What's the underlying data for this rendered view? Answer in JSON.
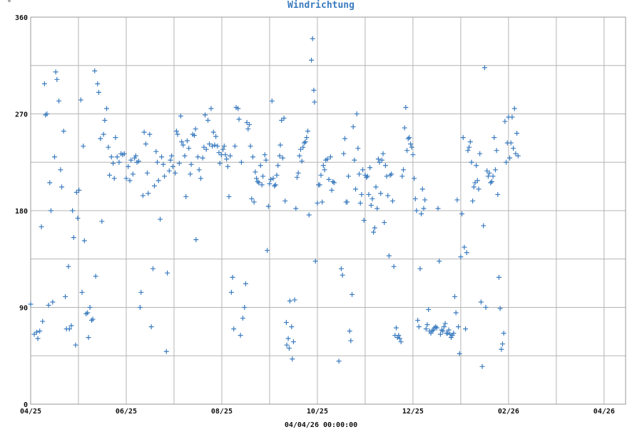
{
  "chart_data": {
    "type": "scatter",
    "title": "Windrichtung",
    "y_unit": "°",
    "footer": "04/04/26 00:00:00",
    "marker": "+",
    "grid": true,
    "xlim": [
      0,
      24.9
    ],
    "ylim": [
      0,
      360
    ],
    "x_ticks": [
      {
        "pos": 0,
        "label": "04/25"
      },
      {
        "pos": 4,
        "label": "06/25"
      },
      {
        "pos": 8,
        "label": "08/25"
      },
      {
        "pos": 12,
        "label": "10/25"
      },
      {
        "pos": 16,
        "label": "12/25"
      },
      {
        "pos": 20,
        "label": "02/26"
      },
      {
        "pos": 24,
        "label": "04/26"
      }
    ],
    "x_grid": [
      0,
      2,
      4,
      6,
      8,
      10,
      12,
      14,
      16,
      18,
      20,
      22,
      24
    ],
    "y_ticks": [
      {
        "value": 0,
        "label": "0"
      },
      {
        "value": 90,
        "label": "90"
      },
      {
        "value": 180,
        "label": "180"
      },
      {
        "value": 270,
        "label": "270"
      },
      {
        "value": 360,
        "label": "360"
      }
    ],
    "y_grid": [
      0,
      45,
      90,
      135,
      180,
      225,
      270,
      315,
      360
    ],
    "color": "#3a7bbf",
    "points": [
      [
        0.0,
        93
      ],
      [
        0.15,
        65
      ],
      [
        0.25,
        67
      ],
      [
        0.3,
        61
      ],
      [
        0.38,
        68
      ],
      [
        0.45,
        165
      ],
      [
        0.5,
        77
      ],
      [
        0.58,
        298
      ],
      [
        0.62,
        269
      ],
      [
        0.68,
        270
      ],
      [
        0.75,
        92
      ],
      [
        0.8,
        206
      ],
      [
        0.85,
        180
      ],
      [
        0.92,
        95
      ],
      [
        1.0,
        230
      ],
      [
        1.05,
        309
      ],
      [
        1.1,
        302
      ],
      [
        1.18,
        282
      ],
      [
        1.25,
        218
      ],
      [
        1.3,
        202
      ],
      [
        1.38,
        254
      ],
      [
        1.45,
        100
      ],
      [
        1.5,
        70
      ],
      [
        1.58,
        128
      ],
      [
        1.62,
        70
      ],
      [
        1.7,
        73
      ],
      [
        1.75,
        180
      ],
      [
        1.8,
        155
      ],
      [
        1.88,
        55
      ],
      [
        1.92,
        197
      ],
      [
        1.97,
        173
      ],
      [
        2.02,
        199
      ],
      [
        2.1,
        283
      ],
      [
        2.15,
        104
      ],
      [
        2.2,
        240
      ],
      [
        2.25,
        152
      ],
      [
        2.32,
        84
      ],
      [
        2.38,
        85
      ],
      [
        2.42,
        62
      ],
      [
        2.48,
        90
      ],
      [
        2.55,
        78
      ],
      [
        2.6,
        79
      ],
      [
        2.68,
        310
      ],
      [
        2.72,
        119
      ],
      [
        2.8,
        298
      ],
      [
        2.85,
        290
      ],
      [
        2.92,
        247
      ],
      [
        2.98,
        170
      ],
      [
        3.05,
        251
      ],
      [
        3.1,
        264
      ],
      [
        3.18,
        275
      ],
      [
        3.25,
        239
      ],
      [
        3.3,
        213
      ],
      [
        3.38,
        230
      ],
      [
        3.45,
        224
      ],
      [
        3.5,
        210
      ],
      [
        3.55,
        248
      ],
      [
        3.62,
        230
      ],
      [
        3.7,
        225
      ],
      [
        3.78,
        233
      ],
      [
        3.85,
        232
      ],
      [
        3.92,
        233
      ],
      [
        4.0,
        210
      ],
      [
        4.08,
        221
      ],
      [
        4.15,
        208
      ],
      [
        4.2,
        227
      ],
      [
        4.28,
        214
      ],
      [
        4.35,
        229
      ],
      [
        4.4,
        231
      ],
      [
        4.45,
        225
      ],
      [
        4.52,
        226
      ],
      [
        4.58,
        90
      ],
      [
        4.62,
        104
      ],
      [
        4.7,
        194
      ],
      [
        4.75,
        253
      ],
      [
        4.82,
        242
      ],
      [
        4.88,
        215
      ],
      [
        4.92,
        196
      ],
      [
        4.98,
        251
      ],
      [
        5.05,
        72
      ],
      [
        5.12,
        126
      ],
      [
        5.18,
        203
      ],
      [
        5.25,
        235
      ],
      [
        5.3,
        225
      ],
      [
        5.35,
        208
      ],
      [
        5.42,
        172
      ],
      [
        5.48,
        230
      ],
      [
        5.55,
        223
      ],
      [
        5.6,
        212
      ],
      [
        5.68,
        49
      ],
      [
        5.72,
        122
      ],
      [
        5.8,
        217
      ],
      [
        5.85,
        227
      ],
      [
        5.9,
        231
      ],
      [
        5.95,
        221
      ],
      [
        6.05,
        215
      ],
      [
        6.1,
        254
      ],
      [
        6.15,
        251
      ],
      [
        6.22,
        224
      ],
      [
        6.28,
        268
      ],
      [
        6.32,
        244
      ],
      [
        6.38,
        241
      ],
      [
        6.45,
        231
      ],
      [
        6.5,
        193
      ],
      [
        6.55,
        245
      ],
      [
        6.62,
        238
      ],
      [
        6.68,
        214
      ],
      [
        6.72,
        223
      ],
      [
        6.78,
        251
      ],
      [
        6.85,
        250
      ],
      [
        6.9,
        256
      ],
      [
        6.92,
        153
      ],
      [
        7.0,
        230
      ],
      [
        7.05,
        218
      ],
      [
        7.12,
        210
      ],
      [
        7.2,
        229
      ],
      [
        7.25,
        239
      ],
      [
        7.3,
        269
      ],
      [
        7.35,
        237
      ],
      [
        7.42,
        264
      ],
      [
        7.48,
        242
      ],
      [
        7.55,
        275
      ],
      [
        7.6,
        240
      ],
      [
        7.65,
        253
      ],
      [
        7.7,
        241
      ],
      [
        7.75,
        249
      ],
      [
        7.82,
        240
      ],
      [
        7.88,
        234
      ],
      [
        7.92,
        224
      ],
      [
        7.98,
        232
      ],
      [
        8.05,
        237
      ],
      [
        8.1,
        240
      ],
      [
        8.15,
        232
      ],
      [
        8.2,
        228
      ],
      [
        8.25,
        221
      ],
      [
        8.3,
        193
      ],
      [
        8.35,
        231
      ],
      [
        8.4,
        104
      ],
      [
        8.45,
        118
      ],
      [
        8.5,
        70
      ],
      [
        8.55,
        240
      ],
      [
        8.6,
        276
      ],
      [
        8.68,
        275
      ],
      [
        8.72,
        265
      ],
      [
        8.78,
        64
      ],
      [
        8.82,
        225
      ],
      [
        8.88,
        80
      ],
      [
        8.95,
        90
      ],
      [
        9.0,
        112
      ],
      [
        9.05,
        262
      ],
      [
        9.1,
        256
      ],
      [
        9.15,
        260
      ],
      [
        9.2,
        240
      ],
      [
        9.25,
        191
      ],
      [
        9.3,
        230
      ],
      [
        9.35,
        188
      ],
      [
        9.4,
        216
      ],
      [
        9.45,
        210
      ],
      [
        9.5,
        207
      ],
      [
        9.55,
        206
      ],
      [
        9.62,
        222
      ],
      [
        9.68,
        204
      ],
      [
        9.72,
        212
      ],
      [
        9.8,
        232
      ],
      [
        9.85,
        227
      ],
      [
        9.9,
        143
      ],
      [
        9.95,
        184
      ],
      [
        10.0,
        205
      ],
      [
        10.05,
        209
      ],
      [
        10.1,
        282
      ],
      [
        10.15,
        210
      ],
      [
        10.2,
        203
      ],
      [
        10.25,
        204
      ],
      [
        10.3,
        213
      ],
      [
        10.35,
        222
      ],
      [
        10.42,
        231
      ],
      [
        10.45,
        241
      ],
      [
        10.5,
        264
      ],
      [
        10.55,
        229
      ],
      [
        10.6,
        266
      ],
      [
        10.65,
        189
      ],
      [
        10.7,
        76
      ],
      [
        10.72,
        55
      ],
      [
        10.78,
        61
      ],
      [
        10.82,
        52
      ],
      [
        10.85,
        96
      ],
      [
        10.92,
        72
      ],
      [
        10.95,
        42
      ],
      [
        11.0,
        58
      ],
      [
        11.05,
        97
      ],
      [
        11.1,
        182
      ],
      [
        11.15,
        211
      ],
      [
        11.2,
        215
      ],
      [
        11.25,
        231
      ],
      [
        11.3,
        237
      ],
      [
        11.35,
        226
      ],
      [
        11.4,
        239
      ],
      [
        11.45,
        243
      ],
      [
        11.5,
        244
      ],
      [
        11.55,
        248
      ],
      [
        11.6,
        254
      ],
      [
        11.65,
        176
      ],
      [
        11.75,
        320
      ],
      [
        11.8,
        340
      ],
      [
        11.85,
        292
      ],
      [
        11.88,
        281
      ],
      [
        11.92,
        133
      ],
      [
        12.0,
        187
      ],
      [
        12.05,
        204
      ],
      [
        12.1,
        204
      ],
      [
        12.15,
        213
      ],
      [
        12.2,
        188
      ],
      [
        12.25,
        222
      ],
      [
        12.3,
        218
      ],
      [
        12.35,
        227
      ],
      [
        12.42,
        228
      ],
      [
        12.48,
        209
      ],
      [
        12.55,
        230
      ],
      [
        12.6,
        199
      ],
      [
        12.65,
        207
      ],
      [
        12.7,
        206
      ],
      [
        12.9,
        40
      ],
      [
        13.0,
        126
      ],
      [
        13.05,
        120
      ],
      [
        13.1,
        233
      ],
      [
        13.15,
        247
      ],
      [
        13.2,
        188
      ],
      [
        13.25,
        188
      ],
      [
        13.3,
        212
      ],
      [
        13.35,
        68
      ],
      [
        13.4,
        59
      ],
      [
        13.45,
        102
      ],
      [
        13.5,
        258
      ],
      [
        13.55,
        227
      ],
      [
        13.6,
        200
      ],
      [
        13.65,
        270
      ],
      [
        13.7,
        238
      ],
      [
        13.75,
        214
      ],
      [
        13.8,
        187
      ],
      [
        13.85,
        195
      ],
      [
        13.9,
        218
      ],
      [
        13.95,
        171
      ],
      [
        14.0,
        213
      ],
      [
        14.05,
        211
      ],
      [
        14.1,
        212
      ],
      [
        14.15,
        195
      ],
      [
        14.2,
        220
      ],
      [
        14.25,
        185
      ],
      [
        14.3,
        191
      ],
      [
        14.35,
        160
      ],
      [
        14.4,
        164
      ],
      [
        14.45,
        202
      ],
      [
        14.5,
        182
      ],
      [
        14.55,
        228
      ],
      [
        14.6,
        225
      ],
      [
        14.65,
        196
      ],
      [
        14.7,
        227
      ],
      [
        14.75,
        233
      ],
      [
        14.8,
        169
      ],
      [
        14.85,
        222
      ],
      [
        14.9,
        212
      ],
      [
        14.95,
        194
      ],
      [
        15.0,
        138
      ],
      [
        15.05,
        213
      ],
      [
        15.1,
        214
      ],
      [
        15.15,
        189
      ],
      [
        15.2,
        128
      ],
      [
        15.25,
        64
      ],
      [
        15.3,
        71
      ],
      [
        15.35,
        62
      ],
      [
        15.4,
        64
      ],
      [
        15.45,
        61
      ],
      [
        15.5,
        58
      ],
      [
        15.55,
        212
      ],
      [
        15.6,
        218
      ],
      [
        15.65,
        257
      ],
      [
        15.7,
        276
      ],
      [
        15.75,
        236
      ],
      [
        15.8,
        247
      ],
      [
        15.85,
        248
      ],
      [
        15.9,
        242
      ],
      [
        15.95,
        239
      ],
      [
        16.0,
        232
      ],
      [
        16.05,
        210
      ],
      [
        16.1,
        191
      ],
      [
        16.15,
        180
      ],
      [
        16.2,
        78
      ],
      [
        16.25,
        72
      ],
      [
        16.3,
        126
      ],
      [
        16.35,
        177
      ],
      [
        16.4,
        200
      ],
      [
        16.45,
        182
      ],
      [
        16.5,
        190
      ],
      [
        16.55,
        70
      ],
      [
        16.6,
        74
      ],
      [
        16.65,
        88
      ],
      [
        16.7,
        68
      ],
      [
        16.75,
        66
      ],
      [
        16.8,
        68
      ],
      [
        16.85,
        69
      ],
      [
        16.9,
        71
      ],
      [
        16.95,
        72
      ],
      [
        17.0,
        71
      ],
      [
        17.05,
        182
      ],
      [
        17.1,
        133
      ],
      [
        17.15,
        65
      ],
      [
        17.2,
        69
      ],
      [
        17.25,
        68
      ],
      [
        17.3,
        72
      ],
      [
        17.35,
        75
      ],
      [
        17.4,
        66
      ],
      [
        17.45,
        66
      ],
      [
        17.5,
        69
      ],
      [
        17.55,
        65
      ],
      [
        17.6,
        62
      ],
      [
        17.65,
        64
      ],
      [
        17.7,
        66
      ],
      [
        17.75,
        100
      ],
      [
        17.8,
        85
      ],
      [
        17.85,
        190
      ],
      [
        17.9,
        72
      ],
      [
        17.95,
        47
      ],
      [
        18.0,
        137
      ],
      [
        18.05,
        177
      ],
      [
        18.1,
        248
      ],
      [
        18.15,
        146
      ],
      [
        18.2,
        70
      ],
      [
        18.25,
        141
      ],
      [
        18.3,
        236
      ],
      [
        18.35,
        239
      ],
      [
        18.4,
        244
      ],
      [
        18.45,
        225
      ],
      [
        18.5,
        189
      ],
      [
        18.55,
        202
      ],
      [
        18.6,
        206
      ],
      [
        18.65,
        222
      ],
      [
        18.7,
        208
      ],
      [
        18.75,
        200
      ],
      [
        18.8,
        233
      ],
      [
        18.85,
        95
      ],
      [
        18.9,
        35
      ],
      [
        18.95,
        166
      ],
      [
        19.0,
        313
      ],
      [
        19.05,
        90
      ],
      [
        19.1,
        217
      ],
      [
        19.15,
        212
      ],
      [
        19.2,
        215
      ],
      [
        19.25,
        206
      ],
      [
        19.3,
        207
      ],
      [
        19.35,
        212
      ],
      [
        19.4,
        248
      ],
      [
        19.45,
        218
      ],
      [
        19.5,
        236
      ],
      [
        19.55,
        195
      ],
      [
        19.6,
        118
      ],
      [
        19.65,
        89
      ],
      [
        19.7,
        51
      ],
      [
        19.75,
        56
      ],
      [
        19.8,
        66
      ],
      [
        19.85,
        263
      ],
      [
        19.9,
        225
      ],
      [
        19.95,
        243
      ],
      [
        20.0,
        267
      ],
      [
        20.05,
        229
      ],
      [
        20.1,
        243
      ],
      [
        20.15,
        267
      ],
      [
        20.2,
        238
      ],
      [
        20.25,
        275
      ],
      [
        20.3,
        233
      ],
      [
        20.35,
        252
      ],
      [
        20.4,
        231
      ]
    ]
  }
}
